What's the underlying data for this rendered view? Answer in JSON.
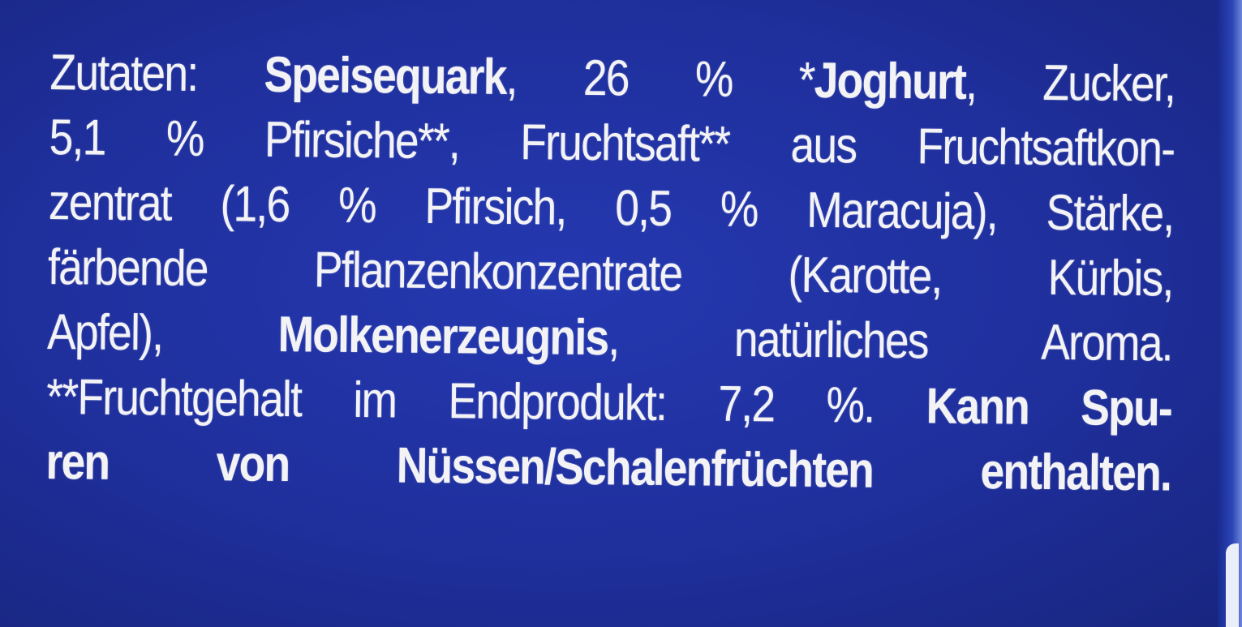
{
  "label": {
    "background_color": "#1f2f9c",
    "text_color": "#f3f3f6",
    "lines": [
      [
        {
          "text": "Zutaten: ",
          "bold": false
        },
        {
          "text": "Speisequark",
          "bold": true
        },
        {
          "text": ", 26 % *",
          "bold": false
        },
        {
          "text": "Joghurt",
          "bold": true
        },
        {
          "text": ", Zucker,",
          "bold": false
        }
      ],
      [
        {
          "text": "5,1 % Pfirsiche**, Fruchtsaft** aus Fruchtsaftkon-",
          "bold": false
        }
      ],
      [
        {
          "text": "zentrat (1,6 % Pfirsich, 0,5 % Maracuja), Stärke,",
          "bold": false
        }
      ],
      [
        {
          "text": "färbende Pflanzenkonzentrate (Karotte, Kürbis,",
          "bold": false
        }
      ],
      [
        {
          "text": "Apfel), ",
          "bold": false
        },
        {
          "text": "Molkenerzeugnis",
          "bold": true
        },
        {
          "text": ", natürliches Aroma.",
          "bold": false
        }
      ],
      [
        {
          "text": "**Fruchtgehalt im Endprodukt: 7,2 %. ",
          "bold": false
        },
        {
          "text": "Kann Spu-",
          "bold": true
        }
      ],
      [
        {
          "text": "ren von Nüssen/Schalenfrüchten enthalten.",
          "bold": true
        }
      ]
    ]
  }
}
